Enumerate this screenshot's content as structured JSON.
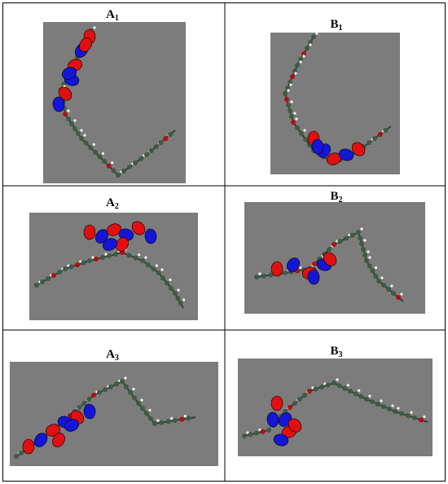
{
  "panels": [
    {
      "letter": "A",
      "index": "1"
    },
    {
      "letter": "B",
      "index": "1"
    },
    {
      "letter": "A",
      "index": "2"
    },
    {
      "letter": "B",
      "index": "2"
    },
    {
      "letter": "A",
      "index": "3"
    },
    {
      "letter": "B",
      "index": "3"
    }
  ]
}
